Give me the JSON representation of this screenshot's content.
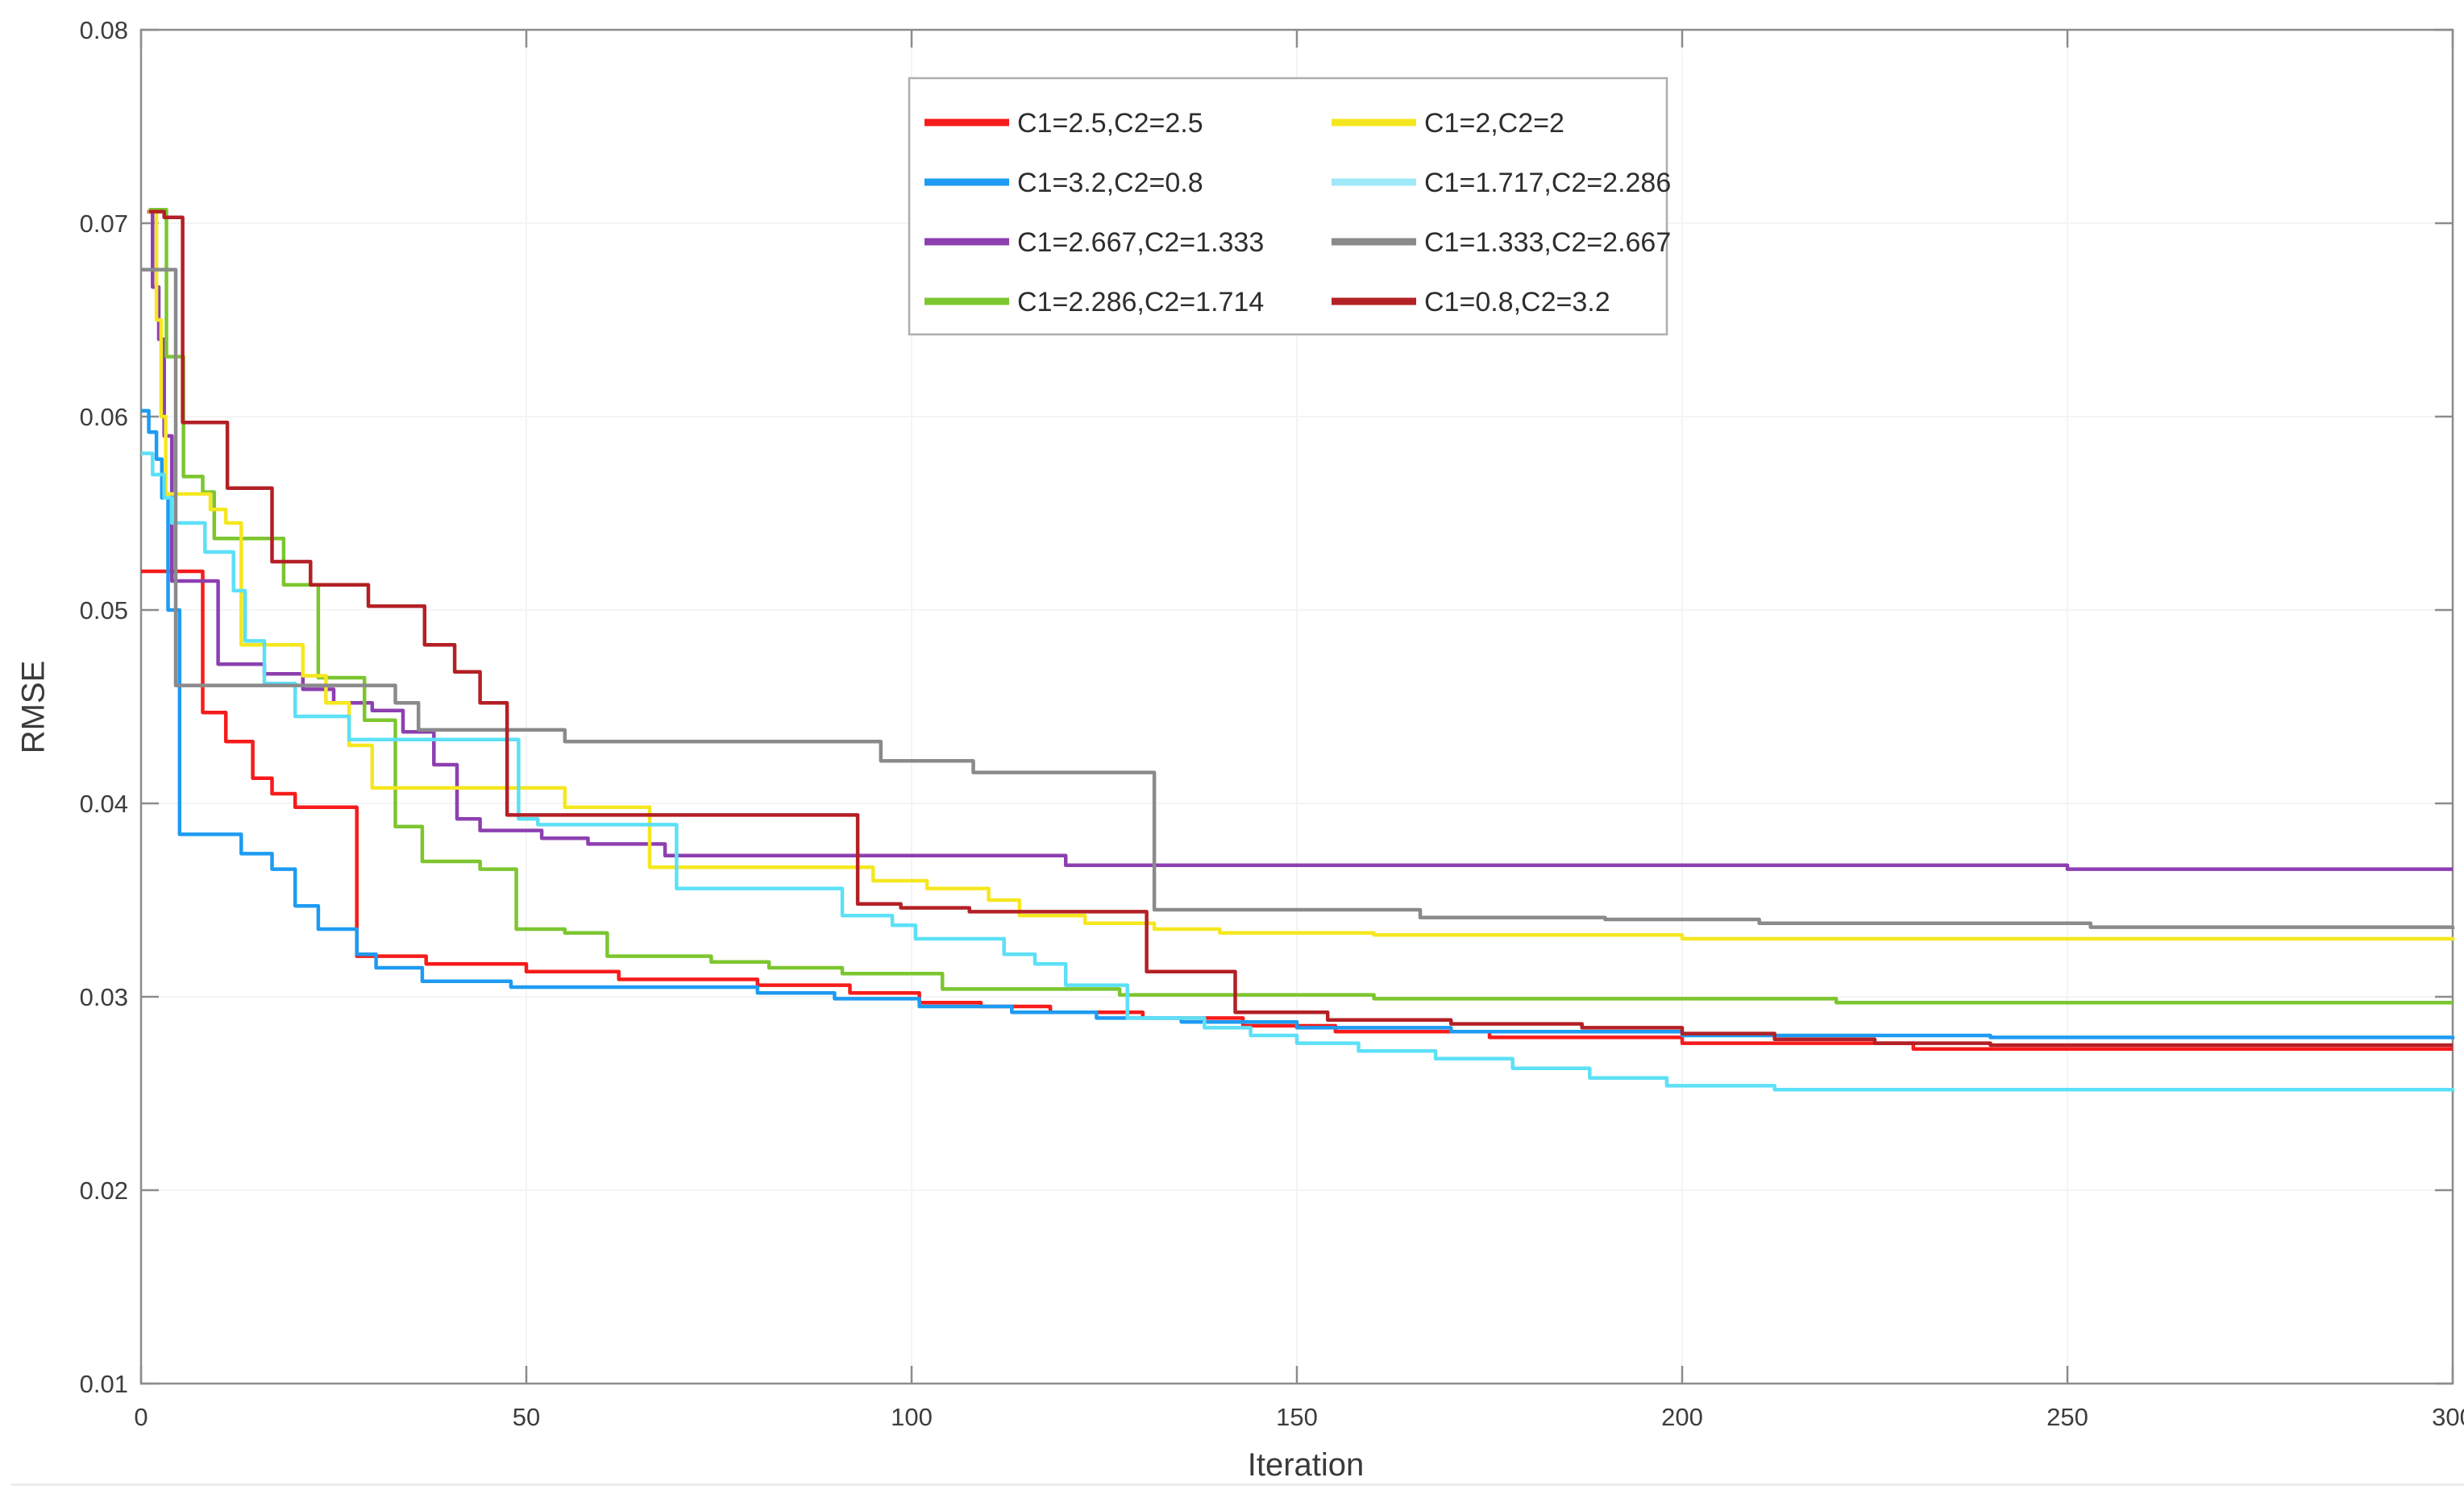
{
  "chart_data": {
    "type": "line",
    "title": "",
    "xlabel": "Iteration",
    "ylabel": "RMSE",
    "xlim": [
      0,
      300
    ],
    "ylim": [
      0.01,
      0.08
    ],
    "x_ticks": [
      0,
      50,
      100,
      150,
      200,
      250,
      300
    ],
    "y_ticks": [
      0.01,
      0.02,
      0.03,
      0.04,
      0.05,
      0.06,
      0.07,
      0.08
    ],
    "y_tick_labels": [
      "0.01",
      "0.02",
      "0.03",
      "0.04",
      "0.05",
      "0.06",
      "0.07",
      "0.08"
    ],
    "grid": true,
    "line_style": "step-after",
    "legend_position": "top-center",
    "legend_columns": 2,
    "axis_color": "#8c8c8c",
    "grid_color": "#f4f4f4",
    "tick_label_color": "#3d3d3d",
    "series": [
      {
        "name": "C1=2.5,C2=2.5",
        "color": "#f71b1b",
        "points": [
          [
            0,
            0.052
          ],
          [
            8,
            0.0447
          ],
          [
            11,
            0.0432
          ],
          [
            14.5,
            0.0413
          ],
          [
            17,
            0.0405
          ],
          [
            20,
            0.0398
          ],
          [
            28,
            0.0321
          ],
          [
            37,
            0.0317
          ],
          [
            50,
            0.0313
          ],
          [
            62,
            0.0309
          ],
          [
            80,
            0.0306
          ],
          [
            92,
            0.0302
          ],
          [
            101,
            0.0297
          ],
          [
            109,
            0.0295
          ],
          [
            118,
            0.0292
          ],
          [
            130,
            0.0289
          ],
          [
            143,
            0.0285
          ],
          [
            155,
            0.0282
          ],
          [
            175,
            0.0279
          ],
          [
            200,
            0.0276
          ],
          [
            230,
            0.0273
          ],
          [
            300,
            0.0273
          ]
        ]
      },
      {
        "name": "C1=3.2,C2=0.8",
        "color": "#1e9bf2",
        "points": [
          [
            0,
            0.0603
          ],
          [
            1,
            0.0592
          ],
          [
            2,
            0.0578
          ],
          [
            2.7,
            0.0558
          ],
          [
            3.5,
            0.05
          ],
          [
            5,
            0.0384
          ],
          [
            13,
            0.0374
          ],
          [
            17,
            0.0366
          ],
          [
            20,
            0.0347
          ],
          [
            23,
            0.0335
          ],
          [
            28,
            0.0322
          ],
          [
            30.5,
            0.0315
          ],
          [
            36.5,
            0.0308
          ],
          [
            48,
            0.0305
          ],
          [
            80,
            0.0302
          ],
          [
            90,
            0.0299
          ],
          [
            101,
            0.0295
          ],
          [
            113,
            0.0292
          ],
          [
            124,
            0.0289
          ],
          [
            135,
            0.0287
          ],
          [
            150,
            0.0284
          ],
          [
            170,
            0.0282
          ],
          [
            200,
            0.028
          ],
          [
            240,
            0.0279
          ],
          [
            300,
            0.0278
          ]
        ]
      },
      {
        "name": "C1=2.667,C2=1.333",
        "color": "#8d3fb0",
        "points": [
          [
            0.8,
            0.0706
          ],
          [
            1.5,
            0.0667
          ],
          [
            2.3,
            0.064
          ],
          [
            3,
            0.059
          ],
          [
            4,
            0.0515
          ],
          [
            10,
            0.0472
          ],
          [
            16,
            0.0467
          ],
          [
            21,
            0.0459
          ],
          [
            25,
            0.0452
          ],
          [
            30,
            0.0448
          ],
          [
            34,
            0.0437
          ],
          [
            38,
            0.042
          ],
          [
            41,
            0.0392
          ],
          [
            44,
            0.0386
          ],
          [
            52,
            0.0382
          ],
          [
            58,
            0.0379
          ],
          [
            68,
            0.0373
          ],
          [
            120,
            0.0368
          ],
          [
            250,
            0.0366
          ],
          [
            300,
            0.0366
          ]
        ]
      },
      {
        "name": "C1=2.286,C2=1.714",
        "color": "#7cc62f",
        "points": [
          [
            1,
            0.0707
          ],
          [
            3.3,
            0.0631
          ],
          [
            5.5,
            0.0569
          ],
          [
            8,
            0.0561
          ],
          [
            9.5,
            0.0537
          ],
          [
            18.5,
            0.0513
          ],
          [
            23,
            0.0465
          ],
          [
            29,
            0.0443
          ],
          [
            33,
            0.0388
          ],
          [
            36.5,
            0.037
          ],
          [
            44,
            0.0366
          ],
          [
            48.7,
            0.0335
          ],
          [
            55,
            0.0333
          ],
          [
            60.5,
            0.0321
          ],
          [
            74,
            0.0318
          ],
          [
            81.5,
            0.0315
          ],
          [
            91,
            0.0312
          ],
          [
            104,
            0.0304
          ],
          [
            127,
            0.0301
          ],
          [
            160,
            0.0299
          ],
          [
            220,
            0.0297
          ],
          [
            300,
            0.0297
          ]
        ]
      },
      {
        "name": "C1=2,C2=2",
        "color": "#f5e71f",
        "points": [
          [
            0.9,
            0.0706
          ],
          [
            2,
            0.065
          ],
          [
            2.6,
            0.06
          ],
          [
            3.2,
            0.056
          ],
          [
            9,
            0.0552
          ],
          [
            11,
            0.0545
          ],
          [
            13,
            0.0482
          ],
          [
            21,
            0.0466
          ],
          [
            24,
            0.0452
          ],
          [
            27,
            0.043
          ],
          [
            30,
            0.0408
          ],
          [
            55,
            0.0398
          ],
          [
            66,
            0.0367
          ],
          [
            95,
            0.036
          ],
          [
            102,
            0.0356
          ],
          [
            110,
            0.035
          ],
          [
            114,
            0.0342
          ],
          [
            122.5,
            0.0338
          ],
          [
            131.5,
            0.0335
          ],
          [
            140,
            0.0333
          ],
          [
            160,
            0.0332
          ],
          [
            200,
            0.033
          ],
          [
            300,
            0.0329
          ]
        ]
      },
      {
        "name": "C1=1.717,C2=2.286",
        "color": "#5ce0f7",
        "points": [
          [
            0,
            0.0581
          ],
          [
            1.5,
            0.057
          ],
          [
            3,
            0.0558
          ],
          [
            4,
            0.0545
          ],
          [
            8.3,
            0.053
          ],
          [
            12,
            0.051
          ],
          [
            13.5,
            0.0484
          ],
          [
            16,
            0.0462
          ],
          [
            20,
            0.0445
          ],
          [
            27,
            0.0433
          ],
          [
            49,
            0.0392
          ],
          [
            51.5,
            0.0389
          ],
          [
            69.5,
            0.0356
          ],
          [
            91,
            0.0342
          ],
          [
            97.5,
            0.0337
          ],
          [
            100.5,
            0.033
          ],
          [
            112,
            0.0322
          ],
          [
            116,
            0.0317
          ],
          [
            120,
            0.0306
          ],
          [
            128,
            0.0289
          ],
          [
            138,
            0.0284
          ],
          [
            144,
            0.028
          ],
          [
            150,
            0.0276
          ],
          [
            158,
            0.0272
          ],
          [
            168,
            0.0268
          ],
          [
            178,
            0.0263
          ],
          [
            188,
            0.0258
          ],
          [
            198,
            0.0254
          ],
          [
            212,
            0.0252
          ],
          [
            300,
            0.0251
          ]
        ]
      },
      {
        "name": "C1=1.333,C2=2.667",
        "color": "#8a8a8a",
        "points": [
          [
            0,
            0.0676
          ],
          [
            4.5,
            0.0461
          ],
          [
            33,
            0.0452
          ],
          [
            36,
            0.0438
          ],
          [
            55,
            0.0432
          ],
          [
            96,
            0.0422
          ],
          [
            108,
            0.0416
          ],
          [
            131.5,
            0.0345
          ],
          [
            166,
            0.0341
          ],
          [
            190,
            0.034
          ],
          [
            210,
            0.0338
          ],
          [
            253,
            0.0336
          ],
          [
            300,
            0.0335
          ]
        ]
      },
      {
        "name": "C1=0.8,C2=3.2",
        "color": "#b32025",
        "points": [
          [
            1,
            0.0706
          ],
          [
            3,
            0.0703
          ],
          [
            5.4,
            0.0597
          ],
          [
            11.2,
            0.0563
          ],
          [
            17,
            0.0525
          ],
          [
            22,
            0.0513
          ],
          [
            29.5,
            0.0502
          ],
          [
            36.8,
            0.0482
          ],
          [
            40.7,
            0.0468
          ],
          [
            44,
            0.0452
          ],
          [
            47.5,
            0.0394
          ],
          [
            93,
            0.0348
          ],
          [
            98.6,
            0.0346
          ],
          [
            107.5,
            0.0344
          ],
          [
            130.5,
            0.0313
          ],
          [
            142,
            0.0292
          ],
          [
            154,
            0.0288
          ],
          [
            170,
            0.0286
          ],
          [
            187,
            0.0284
          ],
          [
            200,
            0.0281
          ],
          [
            212,
            0.0278
          ],
          [
            225,
            0.0276
          ],
          [
            240,
            0.0275
          ],
          [
            300,
            0.0275
          ]
        ]
      }
    ],
    "legend": {
      "border_color": "#aeaeae",
      "background": "#ffffff",
      "entries": [
        {
          "label": "C1=2.5,C2=2.5",
          "color": "#f71b1b",
          "col": 0,
          "row": 0
        },
        {
          "label": "C1=3.2,C2=0.8",
          "color": "#1e9bf2",
          "col": 0,
          "row": 1
        },
        {
          "label": "C1=2.667,C2=1.333",
          "color": "#8d3fb0",
          "col": 0,
          "row": 2
        },
        {
          "label": "C1=2.286,C2=1.714",
          "color": "#7cc62f",
          "col": 0,
          "row": 3
        },
        {
          "label": "C1=2,C2=2",
          "color": "#f5e71f",
          "col": 1,
          "row": 0
        },
        {
          "label": "C1=1.717,C2=2.286",
          "color": "#9fe9f9",
          "col": 1,
          "row": 1
        },
        {
          "label": "C1=1.333,C2=2.667",
          "color": "#8a8a8a",
          "col": 1,
          "row": 2
        },
        {
          "label": "C1=0.8,C2=3.2",
          "color": "#b32025",
          "col": 1,
          "row": 3
        }
      ]
    }
  }
}
